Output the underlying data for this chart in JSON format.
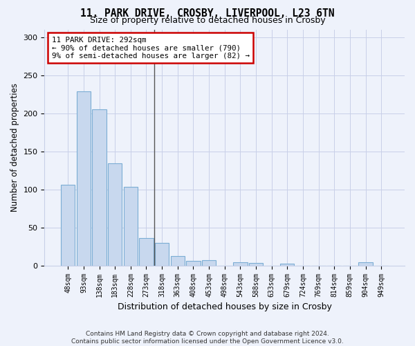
{
  "title1": "11, PARK DRIVE, CROSBY, LIVERPOOL, L23 6TN",
  "title2": "Size of property relative to detached houses in Crosby",
  "xlabel": "Distribution of detached houses by size in Crosby",
  "ylabel": "Number of detached properties",
  "categories": [
    "48sqm",
    "93sqm",
    "138sqm",
    "183sqm",
    "228sqm",
    "273sqm",
    "318sqm",
    "363sqm",
    "408sqm",
    "453sqm",
    "498sqm",
    "543sqm",
    "588sqm",
    "633sqm",
    "679sqm",
    "724sqm",
    "769sqm",
    "814sqm",
    "859sqm",
    "904sqm",
    "949sqm"
  ],
  "values": [
    106,
    229,
    205,
    134,
    103,
    36,
    30,
    12,
    6,
    7,
    0,
    4,
    3,
    0,
    2,
    0,
    0,
    0,
    0,
    4,
    0
  ],
  "bar_color": "#c8d8ee",
  "bar_edge_color": "#7badd4",
  "annotation_line1": "11 PARK DRIVE: 292sqm",
  "annotation_line2": "← 90% of detached houses are smaller (790)",
  "annotation_line3": "9% of semi-detached houses are larger (82) →",
  "annotation_box_color": "#ffffff",
  "annotation_box_edge": "#cc0000",
  "ylim": [
    0,
    310
  ],
  "yticks": [
    0,
    50,
    100,
    150,
    200,
    250,
    300
  ],
  "footer1": "Contains HM Land Registry data © Crown copyright and database right 2024.",
  "footer2": "Contains public sector information licensed under the Open Government Licence v3.0.",
  "bg_color": "#eef2fb",
  "grid_color": "#c8cfe8",
  "title1_fontsize": 10.5,
  "title2_fontsize": 9
}
